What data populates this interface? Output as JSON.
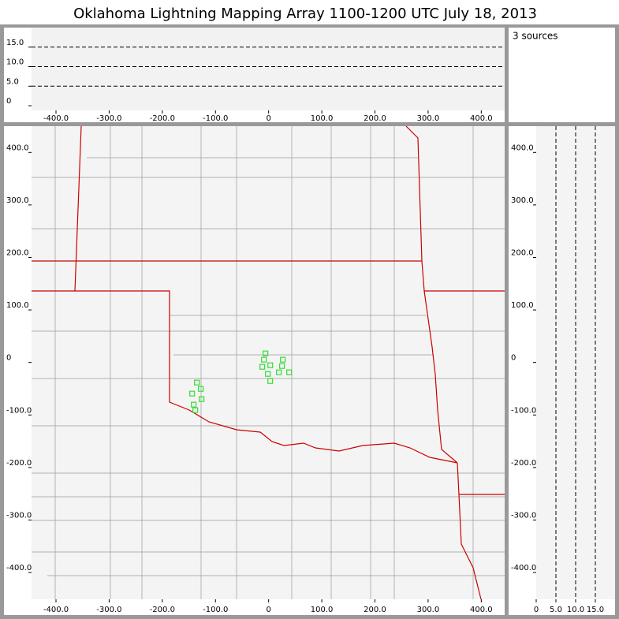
{
  "chart_data": [
    {
      "type": "scatter",
      "title": "Oklahoma Lightning Mapping Array   1100-1200 UTC  July 18, 2013",
      "annotation": "3 sources",
      "xlim": [
        -446,
        444
      ],
      "ylim": [
        -1.2,
        20
      ],
      "xticks": [
        {
          "value": -400,
          "label": "-400.0"
        },
        {
          "value": -300,
          "label": "-300.0"
        },
        {
          "value": -200,
          "label": "-200.0"
        },
        {
          "value": -100,
          "label": "-100.0"
        },
        0,
        {
          "value": 100,
          "label": "100.0"
        },
        {
          "value": 200,
          "label": "200.0"
        },
        {
          "value": 300,
          "label": "300.0"
        },
        {
          "value": 400,
          "label": "400.0"
        }
      ],
      "yticks": [
        0,
        {
          "value": 5,
          "label": "5.0"
        },
        {
          "value": 10,
          "label": "10.0"
        },
        {
          "value": 15,
          "label": "15.0"
        }
      ],
      "grid": "y",
      "series": []
    },
    {
      "type": "scatter",
      "xlim": [
        -446,
        444
      ],
      "ylim": [
        -451,
        450
      ],
      "xticks": [
        {
          "value": -400,
          "label": "-400.0"
        },
        {
          "value": -300,
          "label": "-300.0"
        },
        {
          "value": -200,
          "label": "-200.0"
        },
        {
          "value": -100,
          "label": "-100.0"
        },
        0,
        {
          "value": 100,
          "label": "100.0"
        },
        {
          "value": 200,
          "label": "200.0"
        },
        {
          "value": 300,
          "label": "300.0"
        },
        {
          "value": 400,
          "label": "400.0"
        }
      ],
      "yticks": [
        {
          "value": 400,
          "label": "400.0"
        },
        {
          "value": 300,
          "label": "300.0"
        },
        {
          "value": 200,
          "label": "200.0"
        },
        {
          "value": 100,
          "label": "100.0"
        },
        0,
        {
          "value": -100,
          "label": "-100.0"
        },
        {
          "value": -200,
          "label": "-200.0"
        },
        {
          "value": -300,
          "label": "-300.0"
        },
        {
          "value": -400,
          "label": "-400.0"
        }
      ],
      "grid": "none",
      "series": [
        {
          "color": "#33dd33",
          "x": [
            -5.9,
            -8.9,
            -11.9,
            3.0,
            26.7,
            25.2,
            19.3,
            38.6,
            -1.5,
            3.0,
            -135.0,
            -127.6,
            -143.9,
            -126.1,
            -141.0,
            -138.0
          ],
          "values": [
            17.3,
            5.3,
            -8.3,
            -5.3,
            5.3,
            -6.8,
            -18.8,
            -18.8,
            -21.8,
            -35.3,
            -38.3,
            -50.3,
            -59.3,
            -69.8,
            -80.3,
            -90.8
          ]
        }
      ]
    },
    {
      "type": "scatter",
      "xlim": [
        0,
        20
      ],
      "ylim": [
        -451,
        450
      ],
      "xticks": [
        0,
        {
          "value": 5,
          "label": "5.0"
        },
        {
          "value": 10,
          "label": "10.0"
        },
        {
          "value": 15,
          "label": "15.0"
        }
      ],
      "yticks": [
        {
          "value": 400,
          "label": "400.0"
        },
        {
          "value": 300,
          "label": "300.0"
        },
        {
          "value": 200,
          "label": "200.0"
        },
        {
          "value": 100,
          "label": "100.0"
        },
        0,
        {
          "value": -100,
          "label": "-100.0"
        },
        {
          "value": -200,
          "label": "-200.0"
        },
        {
          "value": -300,
          "label": "-300.0"
        },
        {
          "value": -400,
          "label": "-400.0"
        }
      ],
      "grid": "x",
      "series": []
    }
  ]
}
